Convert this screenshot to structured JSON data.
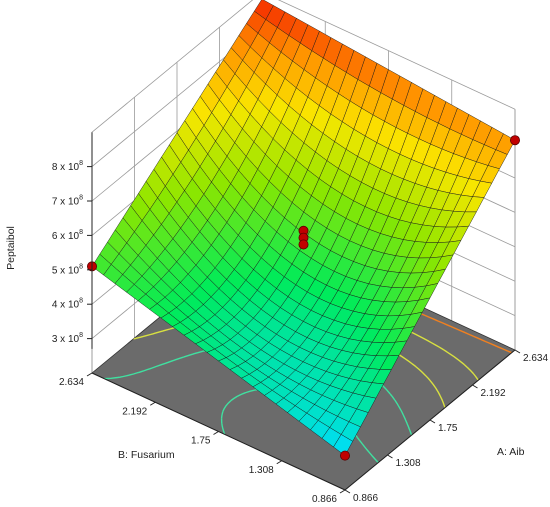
{
  "chart_data": {
    "type": "surface3d",
    "zlabel": "Peptaibol",
    "xlabel": "A: Aib",
    "ylabel": "B: Fusarium",
    "x_ticks": [
      "0.866",
      "1.308",
      "1.75",
      "2.192",
      "2.634"
    ],
    "y_ticks": [
      "0.866",
      "1.308",
      "1.75",
      "2.192",
      "2.634"
    ],
    "z_ticks": [
      {
        "value": 300000000,
        "mantissa": "3 x 10",
        "exp": "8"
      },
      {
        "value": 400000000,
        "mantissa": "4 x 10",
        "exp": "8"
      },
      {
        "value": 500000000,
        "mantissa": "5 x 10",
        "exp": "8"
      },
      {
        "value": 600000000,
        "mantissa": "6 x 10",
        "exp": "8"
      },
      {
        "value": 700000000,
        "mantissa": "7 x 10",
        "exp": "8"
      },
      {
        "value": 800000000,
        "mantissa": "8 x 10",
        "exp": "8"
      }
    ],
    "xlim": [
      0.866,
      2.634
    ],
    "ylim": [
      0.866,
      2.634
    ],
    "zlim": [
      200000000,
      900000000
    ],
    "surface_grid": {
      "x": [
        0.866,
        2.634
      ],
      "y": [
        0.866,
        2.634
      ],
      "z_corners": {
        "x_low_y_low": 300000000,
        "x_high_y_low": 810000000,
        "x_low_y_high": 510000000,
        "x_high_y_high": 880000000
      },
      "z_center": 460000000
    },
    "points": [
      {
        "x": 0.866,
        "y": 2.634,
        "z": 510000000
      },
      {
        "x": 2.634,
        "y": 0.866,
        "z": 810000000
      },
      {
        "x": 0.866,
        "y": 0.866,
        "z": 300000000
      },
      {
        "x": 1.75,
        "y": 1.75,
        "z": 580000000
      },
      {
        "x": 1.75,
        "y": 1.75,
        "z": 560000000
      },
      {
        "x": 1.75,
        "y": 1.75,
        "z": 540000000
      }
    ],
    "colors": {
      "floor": "#6b6b6b",
      "mesh_line": "#1a1a1a",
      "point_fill": "#c00000",
      "point_stroke": "#5a0000",
      "contour_low": "#40e0a0",
      "contour_mid": "#d8e040",
      "contour_high": "#f08020"
    },
    "colormap": "blue-green-yellow-red",
    "grid": true
  }
}
